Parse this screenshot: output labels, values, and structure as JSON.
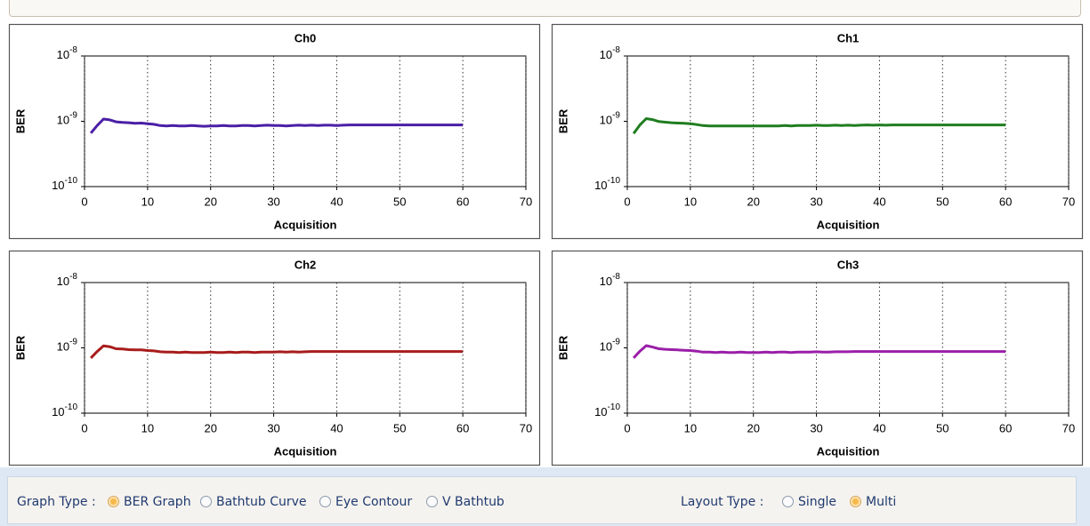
{
  "chart_data": [
    {
      "type": "line",
      "title": "Ch0",
      "xlabel": "Acquisition",
      "ylabel": "BER",
      "log_y": true,
      "grid": "x",
      "xlim": [
        0,
        70
      ],
      "xticks": [
        0,
        10,
        20,
        30,
        40,
        50,
        60,
        70
      ],
      "ylim": [
        1e-10,
        1e-08
      ],
      "yticks": [
        {
          "value": 1e-10,
          "label": "10-10"
        },
        {
          "value": 1e-09,
          "label": "10-9"
        },
        {
          "value": 1e-08,
          "label": "10-8"
        }
      ],
      "x": [
        1,
        2,
        3,
        4,
        5,
        6,
        7,
        8,
        9,
        10,
        11,
        12,
        13,
        14,
        15,
        16,
        17,
        18,
        19,
        20,
        21,
        22,
        23,
        24,
        25,
        26,
        27,
        28,
        29,
        30,
        31,
        32,
        33,
        34,
        35,
        36,
        37,
        38,
        39,
        40,
        41,
        42,
        43,
        44,
        45,
        46,
        47,
        48,
        49,
        50,
        51,
        52,
        53,
        54,
        55,
        56,
        57,
        58,
        59,
        60
      ],
      "series": [
        {
          "name": "Ch0",
          "color": "#4a1fa6",
          "values": [
            6.6e-10,
            8.6e-10,
            1.08e-09,
            1.05e-09,
            9.8e-10,
            9.6e-10,
            9.5e-10,
            9.3e-10,
            9.4e-10,
            9.2e-10,
            9e-10,
            8.6e-10,
            8.5e-10,
            8.6e-10,
            8.5e-10,
            8.5e-10,
            8.6e-10,
            8.5e-10,
            8.4e-10,
            8.5e-10,
            8.5e-10,
            8.6e-10,
            8.5e-10,
            8.5e-10,
            8.6e-10,
            8.6e-10,
            8.5e-10,
            8.6e-10,
            8.7e-10,
            8.6e-10,
            8.6e-10,
            8.5e-10,
            8.6e-10,
            8.7e-10,
            8.6e-10,
            8.7e-10,
            8.6e-10,
            8.7e-10,
            8.7e-10,
            8.6e-10,
            8.7e-10,
            8.8e-10,
            8.8e-10,
            8.8e-10,
            8.8e-10,
            8.8e-10,
            8.8e-10,
            8.8e-10,
            8.8e-10,
            8.8e-10,
            8.8e-10,
            8.8e-10,
            8.8e-10,
            8.8e-10,
            8.8e-10,
            8.8e-10,
            8.8e-10,
            8.8e-10,
            8.8e-10,
            8.8e-10
          ]
        }
      ]
    },
    {
      "type": "line",
      "title": "Ch1",
      "xlabel": "Acquisition",
      "ylabel": "BER",
      "log_y": true,
      "grid": "x",
      "xlim": [
        0,
        70
      ],
      "xticks": [
        0,
        10,
        20,
        30,
        40,
        50,
        60,
        70
      ],
      "ylim": [
        1e-10,
        1e-08
      ],
      "yticks": [
        {
          "value": 1e-10,
          "label": "10-10"
        },
        {
          "value": 1e-09,
          "label": "10-9"
        },
        {
          "value": 1e-08,
          "label": "10-8"
        }
      ],
      "x": [
        1,
        2,
        3,
        4,
        5,
        6,
        7,
        8,
        9,
        10,
        11,
        12,
        13,
        14,
        15,
        16,
        17,
        18,
        19,
        20,
        21,
        22,
        23,
        24,
        25,
        26,
        27,
        28,
        29,
        30,
        31,
        32,
        33,
        34,
        35,
        36,
        37,
        38,
        39,
        40,
        41,
        42,
        43,
        44,
        45,
        46,
        47,
        48,
        49,
        50,
        51,
        52,
        53,
        54,
        55,
        56,
        57,
        58,
        59,
        60
      ],
      "series": [
        {
          "name": "Ch1",
          "color": "#1f7d1f",
          "values": [
            6.5e-10,
            8.8e-10,
            1.1e-09,
            1.06e-09,
            9.9e-10,
            9.7e-10,
            9.5e-10,
            9.4e-10,
            9.3e-10,
            9.2e-10,
            8.9e-10,
            8.6e-10,
            8.5e-10,
            8.5e-10,
            8.5e-10,
            8.5e-10,
            8.5e-10,
            8.5e-10,
            8.5e-10,
            8.5e-10,
            8.5e-10,
            8.5e-10,
            8.5e-10,
            8.5e-10,
            8.6e-10,
            8.5e-10,
            8.6e-10,
            8.6e-10,
            8.6e-10,
            8.7e-10,
            8.6e-10,
            8.6e-10,
            8.7e-10,
            8.6e-10,
            8.7e-10,
            8.6e-10,
            8.7e-10,
            8.8e-10,
            8.7e-10,
            8.8e-10,
            8.7e-10,
            8.8e-10,
            8.8e-10,
            8.8e-10,
            8.8e-10,
            8.8e-10,
            8.8e-10,
            8.8e-10,
            8.8e-10,
            8.8e-10,
            8.8e-10,
            8.8e-10,
            8.8e-10,
            8.8e-10,
            8.8e-10,
            8.8e-10,
            8.8e-10,
            8.8e-10,
            8.8e-10,
            8.8e-10
          ]
        }
      ]
    },
    {
      "type": "line",
      "title": "Ch2",
      "xlabel": "Acquisition",
      "ylabel": "BER",
      "log_y": true,
      "grid": "x",
      "xlim": [
        0,
        70
      ],
      "xticks": [
        0,
        10,
        20,
        30,
        40,
        50,
        60,
        70
      ],
      "ylim": [
        1e-10,
        1e-08
      ],
      "yticks": [
        {
          "value": 1e-10,
          "label": "10-10"
        },
        {
          "value": 1e-09,
          "label": "10-9"
        },
        {
          "value": 1e-08,
          "label": "10-8"
        }
      ],
      "x": [
        1,
        2,
        3,
        4,
        5,
        6,
        7,
        8,
        9,
        10,
        11,
        12,
        13,
        14,
        15,
        16,
        17,
        18,
        19,
        20,
        21,
        22,
        23,
        24,
        25,
        26,
        27,
        28,
        29,
        30,
        31,
        32,
        33,
        34,
        35,
        36,
        37,
        38,
        39,
        40,
        41,
        42,
        43,
        44,
        45,
        46,
        47,
        48,
        49,
        50,
        51,
        52,
        53,
        54,
        55,
        56,
        57,
        58,
        59,
        60
      ],
      "series": [
        {
          "name": "Ch2",
          "color": "#a81c1c",
          "values": [
            7e-10,
            8.8e-10,
            1.07e-09,
            1.04e-09,
            9.7e-10,
            9.6e-10,
            9.4e-10,
            9.3e-10,
            9.3e-10,
            9.1e-10,
            9e-10,
            8.7e-10,
            8.6e-10,
            8.6e-10,
            8.5e-10,
            8.6e-10,
            8.5e-10,
            8.5e-10,
            8.5e-10,
            8.6e-10,
            8.5e-10,
            8.5e-10,
            8.6e-10,
            8.5e-10,
            8.6e-10,
            8.6e-10,
            8.5e-10,
            8.6e-10,
            8.6e-10,
            8.6e-10,
            8.7e-10,
            8.6e-10,
            8.7e-10,
            8.6e-10,
            8.7e-10,
            8.8e-10,
            8.8e-10,
            8.8e-10,
            8.8e-10,
            8.8e-10,
            8.8e-10,
            8.8e-10,
            8.8e-10,
            8.8e-10,
            8.8e-10,
            8.8e-10,
            8.8e-10,
            8.8e-10,
            8.8e-10,
            8.8e-10,
            8.8e-10,
            8.8e-10,
            8.8e-10,
            8.8e-10,
            8.8e-10,
            8.8e-10,
            8.8e-10,
            8.8e-10,
            8.8e-10,
            8.8e-10
          ]
        }
      ]
    },
    {
      "type": "line",
      "title": "Ch3",
      "xlabel": "Acquisition",
      "ylabel": "BER",
      "log_y": true,
      "grid": "x",
      "xlim": [
        0,
        70
      ],
      "xticks": [
        0,
        10,
        20,
        30,
        40,
        50,
        60,
        70
      ],
      "ylim": [
        1e-10,
        1e-08
      ],
      "yticks": [
        {
          "value": 1e-10,
          "label": "10-10"
        },
        {
          "value": 1e-09,
          "label": "10-9"
        },
        {
          "value": 1e-08,
          "label": "10-8"
        }
      ],
      "x": [
        1,
        2,
        3,
        4,
        5,
        6,
        7,
        8,
        9,
        10,
        11,
        12,
        13,
        14,
        15,
        16,
        17,
        18,
        19,
        20,
        21,
        22,
        23,
        24,
        25,
        26,
        27,
        28,
        29,
        30,
        31,
        32,
        33,
        34,
        35,
        36,
        37,
        38,
        39,
        40,
        41,
        42,
        43,
        44,
        45,
        46,
        47,
        48,
        49,
        50,
        51,
        52,
        53,
        54,
        55,
        56,
        57,
        58,
        59,
        60
      ],
      "series": [
        {
          "name": "Ch3",
          "color": "#9a1fa8",
          "values": [
            7e-10,
            8.9e-10,
            1.08e-09,
            1.03e-09,
            9.7e-10,
            9.5e-10,
            9.4e-10,
            9.3e-10,
            9.2e-10,
            9.1e-10,
            8.9e-10,
            8.6e-10,
            8.6e-10,
            8.5e-10,
            8.6e-10,
            8.5e-10,
            8.5e-10,
            8.6e-10,
            8.5e-10,
            8.5e-10,
            8.5e-10,
            8.6e-10,
            8.5e-10,
            8.6e-10,
            8.6e-10,
            8.5e-10,
            8.6e-10,
            8.6e-10,
            8.6e-10,
            8.7e-10,
            8.6e-10,
            8.6e-10,
            8.7e-10,
            8.7e-10,
            8.7e-10,
            8.8e-10,
            8.8e-10,
            8.8e-10,
            8.8e-10,
            8.8e-10,
            8.8e-10,
            8.8e-10,
            8.8e-10,
            8.8e-10,
            8.8e-10,
            8.8e-10,
            8.8e-10,
            8.8e-10,
            8.8e-10,
            8.8e-10,
            8.8e-10,
            8.8e-10,
            8.8e-10,
            8.8e-10,
            8.8e-10,
            8.8e-10,
            8.8e-10,
            8.8e-10,
            8.8e-10,
            8.8e-10
          ]
        }
      ]
    }
  ],
  "controls": {
    "graph_type": {
      "label": "Graph Type :",
      "options": [
        {
          "label": "BER Graph",
          "selected": true
        },
        {
          "label": "Bathtub Curve",
          "selected": false
        },
        {
          "label": "Eye Contour",
          "selected": false
        },
        {
          "label": "V Bathtub",
          "selected": false
        }
      ]
    },
    "layout_type": {
      "label": "Layout Type :",
      "options": [
        {
          "label": "Single",
          "selected": false
        },
        {
          "label": "Multi",
          "selected": true
        }
      ]
    }
  }
}
